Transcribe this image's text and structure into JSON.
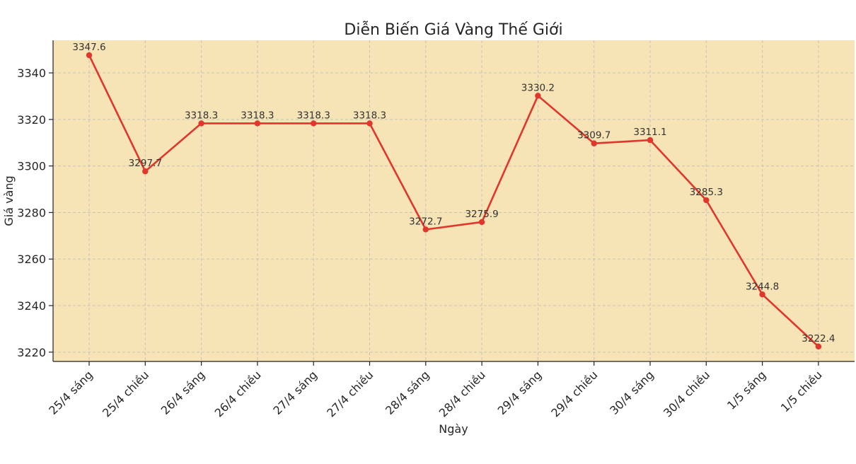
{
  "chart_data": {
    "type": "line",
    "title": "Diễn Biến Giá Vàng Thế Giới",
    "xlabel": "Ngày",
    "ylabel": "Giá vàng",
    "categories": [
      "25/4 sáng",
      "25/4 chiều",
      "26/4 sáng",
      "26/4 chiều",
      "27/4 sáng",
      "27/4 chiều",
      "28/4 sáng",
      "28/4 chiều",
      "29/4 sáng",
      "29/4 chiều",
      "30/4 sáng",
      "30/4 chiều",
      "1/5 sáng",
      "1/5 chiều"
    ],
    "values": [
      3347.6,
      3297.7,
      3318.3,
      3318.3,
      3318.3,
      3318.3,
      3272.7,
      3275.9,
      3330.2,
      3309.7,
      3311.1,
      3285.3,
      3244.8,
      3222.4
    ],
    "value_labels": [
      "3347.6",
      "3297.7",
      "3318.3",
      "3318.3",
      "3318.3",
      "3318.3",
      "3272.7",
      "3275.9",
      "3330.2",
      "3309.7",
      "3311.1",
      "3285.3",
      "3244.8",
      "3222.4"
    ],
    "ylim": [
      3216,
      3354
    ],
    "yticks": [
      3220,
      3240,
      3260,
      3280,
      3300,
      3320,
      3340
    ],
    "ytick_labels": [
      "3220",
      "3240",
      "3260",
      "3280",
      "3300",
      "3320",
      "3340"
    ],
    "grid": true,
    "colors": {
      "line": "#e0362c",
      "plot_background": "#f6e3b6",
      "axis": "#222222"
    }
  }
}
